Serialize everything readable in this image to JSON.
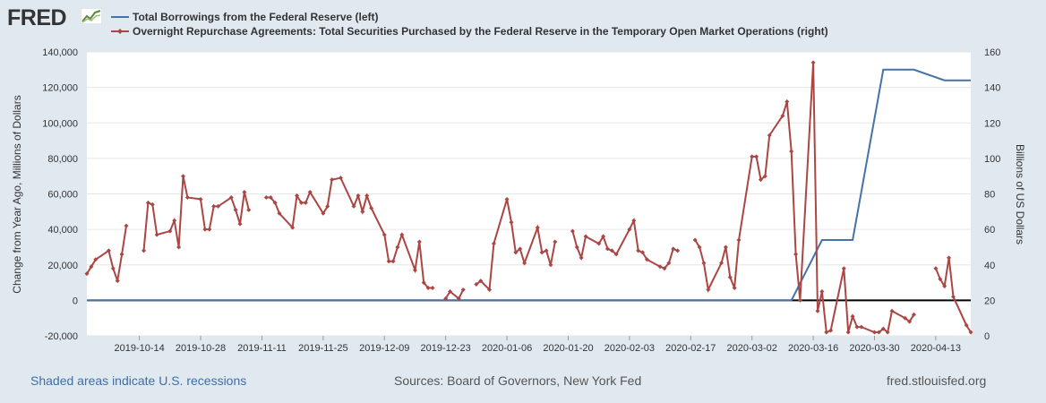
{
  "logo": {
    "text": "FRED",
    "icon": "chart-line-icon"
  },
  "legend": [
    {
      "label": "Total Borrowings from the Federal Reserve (left)",
      "color": "#4572a7"
    },
    {
      "label": "Overnight Repurchase Agreements: Total Securities Purchased by the Federal Reserve in the Temporary Open Market Operations (right)",
      "color": "#aa4643"
    }
  ],
  "footer": {
    "recession_note": "Shaded areas indicate U.S. recessions",
    "sources": "Sources: Board of Governors, New York Fed",
    "site": "fred.stlouisfed.org"
  },
  "chart_data": {
    "type": "line",
    "x_range": [
      "2019-10-02",
      "2020-04-21"
    ],
    "x_tick_labels": [
      "2019-10-14",
      "2019-10-28",
      "2019-11-11",
      "2019-11-25",
      "2019-12-09",
      "2019-12-23",
      "2020-01-06",
      "2020-01-20",
      "2020-02-03",
      "2020-02-17",
      "2020-03-02",
      "2020-03-16",
      "2020-03-30",
      "2020-04-13"
    ],
    "ylabel_left": "Change from Year Ago, Millions of Dollars",
    "ylabel_right": "Billions of US Dollars",
    "ylim_left": [
      -20000,
      140000
    ],
    "yticks_left": [
      "-20,000",
      "0",
      "20,000",
      "40,000",
      "60,000",
      "80,000",
      "100,000",
      "120,000",
      "140,000"
    ],
    "ylim_right": [
      0,
      160
    ],
    "yticks_right": [
      "0",
      "20",
      "40",
      "60",
      "80",
      "100",
      "120",
      "140",
      "160"
    ],
    "zero_line": 0,
    "series": [
      {
        "name": "Total Borrowings from the Federal Reserve (left)",
        "axis": "left",
        "color": "#4572a7",
        "markers": false,
        "x": [
          "2019-10-02",
          "2020-03-11",
          "2020-03-18",
          "2020-03-25",
          "2020-04-01",
          "2020-04-08",
          "2020-04-15",
          "2020-04-21"
        ],
        "values": [
          0,
          0,
          34000,
          34000,
          130000,
          130000,
          124000,
          124000
        ]
      },
      {
        "name": "Overnight Repurchase Agreements: Total Securities Purchased by the Federal Reserve in the Temporary Open Market Operations (right)",
        "axis": "right",
        "color": "#aa4643",
        "markers": true,
        "segments": [
          {
            "x": [
              "2019-10-02",
              "2019-10-03",
              "2019-10-04",
              "2019-10-07",
              "2019-10-08",
              "2019-10-09",
              "2019-10-10",
              "2019-10-11"
            ],
            "values": [
              35,
              39,
              43,
              48,
              38,
              31,
              46,
              62
            ]
          },
          {
            "x": [
              "2019-10-15",
              "2019-10-16",
              "2019-10-17",
              "2019-10-18",
              "2019-10-21",
              "2019-10-22",
              "2019-10-23",
              "2019-10-24",
              "2019-10-25",
              "2019-10-28",
              "2019-10-29",
              "2019-10-30",
              "2019-10-31",
              "2019-11-01",
              "2019-11-04",
              "2019-11-05",
              "2019-11-06",
              "2019-11-07",
              "2019-11-08"
            ],
            "values": [
              48,
              75,
              74,
              57,
              59,
              65,
              50,
              90,
              78,
              77,
              60,
              60,
              73,
              73,
              78,
              71,
              63,
              81,
              71
            ]
          },
          {
            "x": [
              "2019-11-12",
              "2019-11-13",
              "2019-11-14",
              "2019-11-15",
              "2019-11-18",
              "2019-11-19",
              "2019-11-20",
              "2019-11-21",
              "2019-11-22",
              "2019-11-25",
              "2019-11-26",
              "2019-11-27",
              "2019-11-29",
              "2019-12-02",
              "2019-12-03",
              "2019-12-04",
              "2019-12-05",
              "2019-12-06",
              "2019-12-09",
              "2019-12-10",
              "2019-12-11",
              "2019-12-12",
              "2019-12-13",
              "2019-12-16",
              "2019-12-17",
              "2019-12-18",
              "2019-12-19",
              "2019-12-20"
            ],
            "values": [
              78,
              78,
              75,
              69,
              61,
              79,
              75,
              75,
              81,
              69,
              73,
              88,
              89,
              73,
              79,
              70,
              79,
              72,
              57,
              42,
              42,
              50,
              57,
              37,
              53,
              30,
              27,
              27
            ]
          },
          {
            "x": [
              "2019-12-23",
              "2019-12-24",
              "2019-12-26",
              "2019-12-27"
            ],
            "values": [
              21,
              25,
              21,
              26
            ]
          },
          {
            "x": [
              "2019-12-30",
              "2019-12-31",
              "2020-01-02",
              "2020-01-03",
              "2020-01-06",
              "2020-01-07",
              "2020-01-08",
              "2020-01-09",
              "2020-01-10",
              "2020-01-13",
              "2020-01-14",
              "2020-01-15",
              "2020-01-16",
              "2020-01-17"
            ],
            "values": [
              29,
              31,
              26,
              52,
              77,
              64,
              47,
              49,
              41,
              61,
              47,
              48,
              40,
              53
            ]
          },
          {
            "x": [
              "2020-01-21",
              "2020-01-22",
              "2020-01-23",
              "2020-01-24",
              "2020-01-27",
              "2020-01-28",
              "2020-01-29",
              "2020-01-30",
              "2020-01-31",
              "2020-02-03",
              "2020-02-04",
              "2020-02-05",
              "2020-02-06",
              "2020-02-07",
              "2020-02-10",
              "2020-02-11",
              "2020-02-12",
              "2020-02-13",
              "2020-02-14"
            ],
            "values": [
              59,
              50,
              44,
              56,
              52,
              56,
              49,
              48,
              46,
              60,
              65,
              48,
              47,
              43,
              39,
              38,
              41,
              49,
              48
            ]
          },
          {
            "x": [
              "2020-02-18",
              "2020-02-19",
              "2020-02-20",
              "2020-02-21",
              "2020-02-24",
              "2020-02-25",
              "2020-02-26",
              "2020-02-27",
              "2020-02-28",
              "2020-03-02",
              "2020-03-03",
              "2020-03-04",
              "2020-03-05",
              "2020-03-06",
              "2020-03-09",
              "2020-03-10",
              "2020-03-11",
              "2020-03-12",
              "2020-03-13",
              "2020-03-16",
              "2020-03-17",
              "2020-03-18",
              "2020-03-19",
              "2020-03-20",
              "2020-03-23",
              "2020-03-24",
              "2020-03-25",
              "2020-03-26",
              "2020-03-27",
              "2020-03-30",
              "2020-03-31",
              "2020-04-01",
              "2020-04-02",
              "2020-04-03",
              "2020-04-06",
              "2020-04-07",
              "2020-04-08"
            ],
            "values": [
              54,
              50,
              41,
              26,
              41,
              50,
              33,
              27,
              54,
              101,
              101,
              88,
              90,
              113,
              124,
              132,
              104,
              46,
              20,
              154,
              14,
              25,
              2,
              3,
              38,
              2,
              11,
              5,
              5,
              2,
              2,
              4,
              2,
              14,
              10,
              8,
              12
            ]
          },
          {
            "x": [
              "2020-04-13",
              "2020-04-14",
              "2020-04-15",
              "2020-04-16",
              "2020-04-17",
              "2020-04-20",
              "2020-04-21"
            ],
            "values": [
              38,
              32,
              28,
              44,
              22,
              6,
              2
            ]
          }
        ]
      }
    ]
  }
}
